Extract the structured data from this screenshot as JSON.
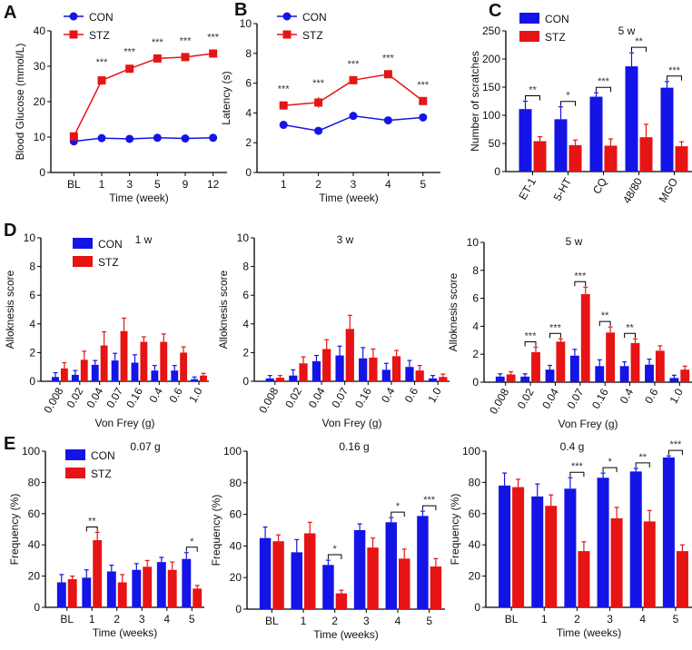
{
  "colors": {
    "CON": "#1414e6",
    "STZ": "#e61414"
  },
  "chart_data": [
    {
      "panel": "A",
      "type": "line",
      "title": "",
      "xlabel": "Time (week)",
      "ylabel": "Blood Glucose (mmol/L)",
      "ylim": [
        0,
        40
      ],
      "yticks": [
        0,
        10,
        20,
        30,
        40
      ],
      "categories": [
        "BL",
        "1",
        "3",
        "5",
        "9",
        "12"
      ],
      "legend": [
        "CON",
        "STZ"
      ],
      "series": [
        {
          "name": "CON",
          "values": [
            8.8,
            9.7,
            9.5,
            9.8,
            9.6,
            9.8
          ],
          "errors": [
            0.5,
            0.4,
            0.4,
            0.4,
            0.4,
            0.4
          ]
        },
        {
          "name": "STZ",
          "values": [
            10.2,
            26,
            29.3,
            32.2,
            32.6,
            33.6
          ],
          "errors": [
            0.6,
            1.2,
            0.8,
            0.6,
            0.6,
            0.6
          ]
        }
      ],
      "significance": [
        "",
        "***",
        "***",
        "***",
        "***",
        "***"
      ]
    },
    {
      "panel": "B",
      "type": "line",
      "title": "",
      "xlabel": "Time (week)",
      "ylabel": "Latency (s)",
      "ylim": [
        0,
        10
      ],
      "yticks": [
        0,
        2,
        4,
        6,
        8,
        10
      ],
      "categories": [
        "1",
        "2",
        "3",
        "4",
        "5"
      ],
      "legend": [
        "CON",
        "STZ"
      ],
      "series": [
        {
          "name": "CON",
          "values": [
            3.2,
            2.8,
            3.8,
            3.5,
            3.7
          ],
          "errors": [
            0.25,
            0.1,
            0.1,
            0.1,
            0.1
          ]
        },
        {
          "name": "STZ",
          "values": [
            4.5,
            4.7,
            6.2,
            6.6,
            4.8
          ],
          "errors": [
            0.15,
            0.35,
            0.15,
            0.15,
            0.15
          ]
        }
      ],
      "significance": [
        "***",
        "***",
        "***",
        "***",
        "***"
      ]
    },
    {
      "panel": "C",
      "type": "bar",
      "title": "5 w",
      "xlabel": "",
      "ylabel": "Number of scratches",
      "ylim": [
        0,
        250
      ],
      "yticks": [
        0,
        50,
        100,
        150,
        200,
        250
      ],
      "categories": [
        "ET-1",
        "5-HT",
        "CQ",
        "48/80",
        "MGO"
      ],
      "legend": [
        "CON",
        "STZ"
      ],
      "rotate": true,
      "series": [
        {
          "name": "CON",
          "values": [
            111,
            93,
            133,
            187,
            149
          ],
          "errors": [
            14,
            22,
            7,
            24,
            11
          ]
        },
        {
          "name": "STZ",
          "values": [
            54,
            47,
            46,
            61,
            45
          ],
          "errors": [
            8,
            9,
            12,
            23,
            8
          ]
        }
      ],
      "significance": [
        "**",
        "*",
        "***",
        "**",
        "***"
      ]
    },
    {
      "panel": "D",
      "type": "bar",
      "title": "1 w",
      "xlabel": "Von Frey (g)",
      "ylabel": "Alloknesis score",
      "ylim": [
        0,
        10
      ],
      "yticks": [
        0,
        2,
        4,
        6,
        8,
        10
      ],
      "categories": [
        "0.008",
        "0.02",
        "0.04",
        "0.07",
        "0.16",
        "0.4",
        "0.6",
        "1.0"
      ],
      "legend": [
        "CON",
        "STZ"
      ],
      "rotate": true,
      "series": [
        {
          "name": "CON",
          "values": [
            0.3,
            0.45,
            1.15,
            1.45,
            1.3,
            0.75,
            0.75,
            0.15
          ],
          "errors": [
            0.3,
            0.3,
            0.3,
            0.5,
            0.55,
            0.35,
            0.35,
            0.15
          ]
        },
        {
          "name": "STZ",
          "values": [
            0.9,
            1.5,
            2.5,
            3.5,
            2.75,
            2.75,
            2.0,
            0.4
          ],
          "errors": [
            0.4,
            0.6,
            0.95,
            0.9,
            0.35,
            0.55,
            0.4,
            0.15
          ]
        }
      ],
      "significance": [
        "",
        "",
        "",
        "",
        "",
        "",
        "",
        ""
      ]
    },
    {
      "panel": "",
      "type": "bar",
      "title": "3 w",
      "xlabel": "Von Frey (g)",
      "ylabel": "Alloknesis score",
      "ylim": [
        0,
        10
      ],
      "yticks": [
        0,
        2,
        4,
        6,
        8,
        10
      ],
      "categories": [
        "0.008",
        "0.02",
        "0.04",
        "0.07",
        "0.16",
        "0.4",
        "0.6",
        "1.0"
      ],
      "legend": [],
      "rotate": true,
      "series": [
        {
          "name": "CON",
          "values": [
            0.2,
            0.4,
            1.4,
            1.8,
            1.6,
            0.8,
            1.0,
            0.2
          ],
          "errors": [
            0.2,
            0.4,
            0.4,
            0.65,
            0.75,
            0.45,
            0.45,
            0.2
          ]
        },
        {
          "name": "STZ",
          "values": [
            0.25,
            1.25,
            2.25,
            3.65,
            1.65,
            1.75,
            0.75,
            0.3
          ],
          "errors": [
            0.15,
            0.45,
            0.65,
            0.95,
            0.6,
            0.4,
            0.35,
            0.2
          ]
        }
      ],
      "significance": [
        "",
        "",
        "",
        "",
        "",
        "",
        "",
        ""
      ]
    },
    {
      "panel": "",
      "type": "bar",
      "title": "5 w",
      "xlabel": "Von Frey (g)",
      "ylabel": "Alloknesis score",
      "ylim": [
        0,
        10
      ],
      "yticks": [
        0,
        2,
        4,
        6,
        8,
        10
      ],
      "categories": [
        "0.008",
        "0.02",
        "0.04",
        "0.07",
        "0.16",
        "0.4",
        "0.6",
        "1.0"
      ],
      "legend": [],
      "rotate": true,
      "series": [
        {
          "name": "CON",
          "values": [
            0.4,
            0.4,
            0.9,
            1.9,
            1.15,
            1.15,
            1.25,
            0.3
          ],
          "errors": [
            0.2,
            0.2,
            0.3,
            0.45,
            0.45,
            0.3,
            0.4,
            0.2
          ]
        },
        {
          "name": "STZ",
          "values": [
            0.55,
            2.15,
            2.9,
            6.3,
            3.55,
            2.8,
            2.25,
            0.9
          ],
          "errors": [
            0.2,
            0.35,
            0.2,
            0.5,
            0.4,
            0.3,
            0.35,
            0.25
          ]
        }
      ],
      "significance": [
        "",
        "***",
        "***",
        "***",
        "**",
        "**",
        "",
        ""
      ]
    },
    {
      "panel": "E",
      "type": "bar",
      "title": "0.07 g",
      "xlabel": "Time (weeks)",
      "ylabel": "Frequency (%)",
      "ylim": [
        0,
        100
      ],
      "yticks": [
        0,
        20,
        40,
        60,
        80,
        100
      ],
      "categories": [
        "BL",
        "1",
        "2",
        "3",
        "4",
        "5"
      ],
      "legend": [
        "CON",
        "STZ"
      ],
      "series": [
        {
          "name": "CON",
          "values": [
            16,
            19,
            23,
            24,
            29,
            31
          ],
          "errors": [
            5,
            5,
            4,
            4,
            3,
            4
          ]
        },
        {
          "name": "STZ",
          "values": [
            18,
            43,
            16,
            26,
            24,
            12
          ],
          "errors": [
            2,
            5,
            5,
            4,
            5,
            2
          ]
        }
      ],
      "significance": [
        "",
        "**",
        "",
        "",
        "",
        "*"
      ]
    },
    {
      "panel": "",
      "type": "bar",
      "title": "0.16 g",
      "xlabel": "Time (weeks)",
      "ylabel": "Frequency (%)",
      "ylim": [
        0,
        100
      ],
      "yticks": [
        0,
        20,
        40,
        60,
        80,
        100
      ],
      "categories": [
        "BL",
        "1",
        "2",
        "3",
        "4",
        "5"
      ],
      "legend": [],
      "series": [
        {
          "name": "CON",
          "values": [
            45,
            36,
            28,
            50,
            55,
            59
          ],
          "errors": [
            7,
            8,
            3,
            4,
            3,
            3
          ]
        },
        {
          "name": "STZ",
          "values": [
            43,
            48,
            10,
            39,
            32,
            27
          ],
          "errors": [
            4,
            7,
            2,
            6,
            6,
            5
          ]
        }
      ],
      "significance": [
        "",
        "",
        "*",
        "",
        "*",
        "***"
      ]
    },
    {
      "panel": "",
      "type": "bar",
      "title": "0.4 g",
      "xlabel": "Time (weeks)",
      "ylabel": "Frequency (%)",
      "ylim": [
        0,
        100
      ],
      "yticks": [
        0,
        20,
        40,
        60,
        80,
        100
      ],
      "categories": [
        "BL",
        "1",
        "2",
        "3",
        "4",
        "5"
      ],
      "legend": [],
      "series": [
        {
          "name": "CON",
          "values": [
            78,
            71,
            76,
            83,
            87,
            96
          ],
          "errors": [
            8,
            8,
            7,
            3,
            2,
            1
          ]
        },
        {
          "name": "STZ",
          "values": [
            77,
            65,
            36,
            57,
            55,
            36
          ],
          "errors": [
            5,
            7,
            6,
            7,
            7,
            4
          ]
        }
      ],
      "significance": [
        "",
        "",
        "***",
        "*",
        "**",
        "***"
      ]
    }
  ]
}
